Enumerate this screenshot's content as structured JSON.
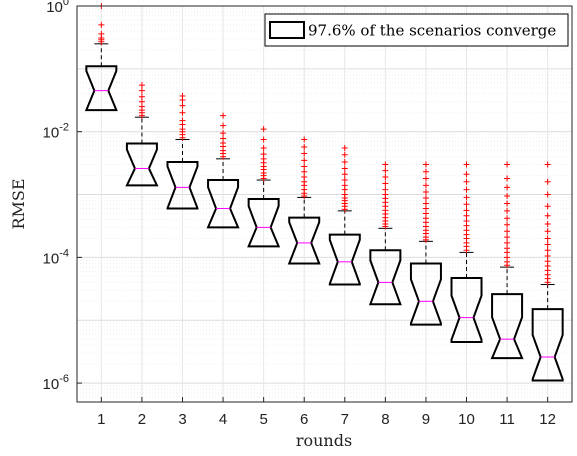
{
  "chart_data": {
    "type": "box",
    "title": "",
    "xlabel": "rounds",
    "ylabel": "RMSE",
    "yscale": "log",
    "ylim": [
      5e-07,
      1
    ],
    "y_ticks": [
      {
        "value": 1,
        "base": "10",
        "exp": "0"
      },
      {
        "value": 0.01,
        "base": "10",
        "exp": "-2"
      },
      {
        "value": 0.0001,
        "base": "10",
        "exp": "-4"
      },
      {
        "value": 1e-06,
        "base": "10",
        "exp": "-6"
      }
    ],
    "categories": [
      "1",
      "2",
      "3",
      "4",
      "5",
      "6",
      "7",
      "8",
      "9",
      "10",
      "11",
      "12"
    ],
    "legend": {
      "label": "97.6% of the scenarios converge",
      "position": "top-right"
    },
    "grid": true,
    "notched": true,
    "colors": {
      "box": "#000000",
      "whisker": "#000000",
      "median": "#ff00ff",
      "outlier": "#ff0000"
    },
    "boxes": [
      {
        "x": "1",
        "q1": 0.022,
        "median": 0.045,
        "q3": 0.11,
        "whisker_low": 0.022,
        "whisker_high": 0.25,
        "outliers": [
          0.27,
          0.29,
          0.31,
          0.36,
          0.5,
          1.0
        ]
      },
      {
        "x": "2",
        "q1": 0.0014,
        "median": 0.0026,
        "q3": 0.0065,
        "whisker_low": 0.0014,
        "whisker_high": 0.017,
        "outliers": [
          0.018,
          0.02,
          0.022,
          0.025,
          0.03,
          0.036,
          0.045,
          0.055
        ]
      },
      {
        "x": "3",
        "q1": 0.0006,
        "median": 0.0013,
        "q3": 0.0033,
        "whisker_low": 0.0006,
        "whisker_high": 0.0075,
        "outliers": [
          0.008,
          0.009,
          0.01,
          0.011,
          0.013,
          0.015,
          0.02,
          0.026,
          0.032,
          0.037
        ]
      },
      {
        "x": "4",
        "q1": 0.0003,
        "median": 0.0006,
        "q3": 0.0017,
        "whisker_low": 0.0003,
        "whisker_high": 0.0037,
        "outliers": [
          0.004,
          0.0045,
          0.005,
          0.0058,
          0.0066,
          0.0078,
          0.0095,
          0.0125,
          0.018
        ]
      },
      {
        "x": "5",
        "q1": 0.00015,
        "median": 0.0003,
        "q3": 0.00085,
        "whisker_low": 0.00015,
        "whisker_high": 0.0017,
        "outliers": [
          0.0018,
          0.002,
          0.0022,
          0.0025,
          0.0028,
          0.0032,
          0.0037,
          0.0044,
          0.0055,
          0.0075,
          0.011
        ]
      },
      {
        "x": "6",
        "q1": 8e-05,
        "median": 0.00017,
        "q3": 0.00043,
        "whisker_low": 8e-05,
        "whisker_high": 0.0009,
        "outliers": [
          0.00095,
          0.00105,
          0.0012,
          0.0014,
          0.0016,
          0.0019,
          0.0023,
          0.0028,
          0.0035,
          0.0045,
          0.0057,
          0.0075
        ]
      },
      {
        "x": "7",
        "q1": 3.7e-05,
        "median": 8.5e-05,
        "q3": 0.00023,
        "whisker_low": 3.7e-05,
        "whisker_high": 0.00055,
        "outliers": [
          0.00058,
          0.00065,
          0.00072,
          0.0008,
          0.00088,
          0.001,
          0.0012,
          0.0014,
          0.0017,
          0.0021,
          0.0026,
          0.0033,
          0.0043,
          0.0055
        ]
      },
      {
        "x": "8",
        "q1": 1.8e-05,
        "median": 4e-05,
        "q3": 0.00013,
        "whisker_low": 1.8e-05,
        "whisker_high": 0.00029,
        "outliers": [
          0.00031,
          0.00034,
          0.00038,
          0.00043,
          0.00049,
          0.00056,
          0.00065,
          0.00075,
          0.00087,
          0.001,
          0.0012,
          0.0015,
          0.0019,
          0.0024,
          0.003
        ]
      },
      {
        "x": "9",
        "q1": 8.5e-06,
        "median": 2e-05,
        "q3": 8e-05,
        "whisker_low": 8.5e-06,
        "whisker_high": 0.00018,
        "outliers": [
          0.00019,
          0.00021,
          0.00024,
          0.00027,
          0.00031,
          0.00036,
          0.00042,
          0.0005,
          0.0006,
          0.00072,
          0.00088,
          0.0011,
          0.0014,
          0.0018,
          0.0023,
          0.003
        ]
      },
      {
        "x": "10",
        "q1": 4.5e-06,
        "median": 1.1e-05,
        "q3": 4.7e-05,
        "whisker_low": 4.5e-06,
        "whisker_high": 0.00012,
        "outliers": [
          0.00013,
          0.00015,
          0.00017,
          0.0002,
          0.00023,
          0.00027,
          0.00032,
          0.00038,
          0.00046,
          0.00056,
          0.0007,
          0.0009,
          0.0012,
          0.0016,
          0.0021,
          0.003
        ]
      },
      {
        "x": "11",
        "q1": 2.5e-06,
        "median": 5e-06,
        "q3": 2.6e-05,
        "whisker_low": 2.5e-06,
        "whisker_high": 7e-05,
        "outliers": [
          7.5e-05,
          8.5e-05,
          0.0001,
          0.00012,
          0.00014,
          0.00017,
          0.00021,
          0.00026,
          0.00033,
          0.00042,
          0.00055,
          0.00072,
          0.00095,
          0.0013,
          0.0018,
          0.003
        ]
      },
      {
        "x": "12",
        "q1": 1.1e-06,
        "median": 2.6e-06,
        "q3": 1.5e-05,
        "whisker_low": 1.1e-06,
        "whisker_high": 3.7e-05,
        "outliers": [
          4e-05,
          4.6e-05,
          5.3e-05,
          6.2e-05,
          7.3e-05,
          8.7e-05,
          0.000105,
          0.00013,
          0.00016,
          0.0002,
          0.00026,
          0.00034,
          0.00046,
          0.00065,
          0.001,
          0.0016,
          0.003
        ]
      }
    ]
  }
}
